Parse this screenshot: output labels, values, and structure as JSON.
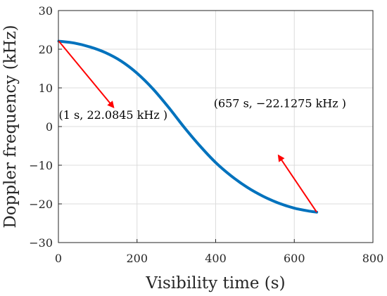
{
  "chart_data": {
    "type": "line",
    "title": "",
    "xlabel": "Visibility time (s)",
    "ylabel": "Doppler frequency (kHz)",
    "xlim": [
      0,
      800
    ],
    "ylim": [
      -30,
      30
    ],
    "xticks": [
      0,
      200,
      400,
      600,
      800
    ],
    "yticks": [
      -30,
      -20,
      -10,
      0,
      10,
      20,
      30
    ],
    "xtick_labels": [
      "0",
      "200",
      "400",
      "600",
      "800"
    ],
    "ytick_labels": [
      "−30",
      "−20",
      "−10",
      "0",
      "10",
      "20",
      "30"
    ],
    "grid": true,
    "series": [
      {
        "color": "#0072BD",
        "x": [
          1,
          40,
          80,
          120,
          160,
          200,
          240,
          280,
          320,
          360,
          400,
          440,
          480,
          520,
          560,
          600,
          640,
          657
        ],
        "y": [
          22.08,
          21.6,
          20.6,
          19.1,
          16.9,
          13.8,
          9.8,
          5.0,
          -0.2,
          -5.0,
          -9.3,
          -12.8,
          -15.7,
          -18.0,
          -19.8,
          -21.1,
          -21.9,
          -22.13
        ]
      }
    ],
    "annotations": [
      {
        "text": "(1 s, 22.0845 kHz )",
        "anchor": [
          1,
          22.0845
        ],
        "label_pos": [
          1,
          2
        ],
        "arrow_tip": [
          140,
          5
        ],
        "arrow_color": "#FF0000"
      },
      {
        "text": "(657 s, −22.1275 kHz )",
        "anchor": [
          657,
          -22.1275
        ],
        "label_pos": [
          395,
          5
        ],
        "arrow_tip": [
          560,
          -7.5
        ],
        "arrow_color": "#FF0000"
      }
    ]
  }
}
